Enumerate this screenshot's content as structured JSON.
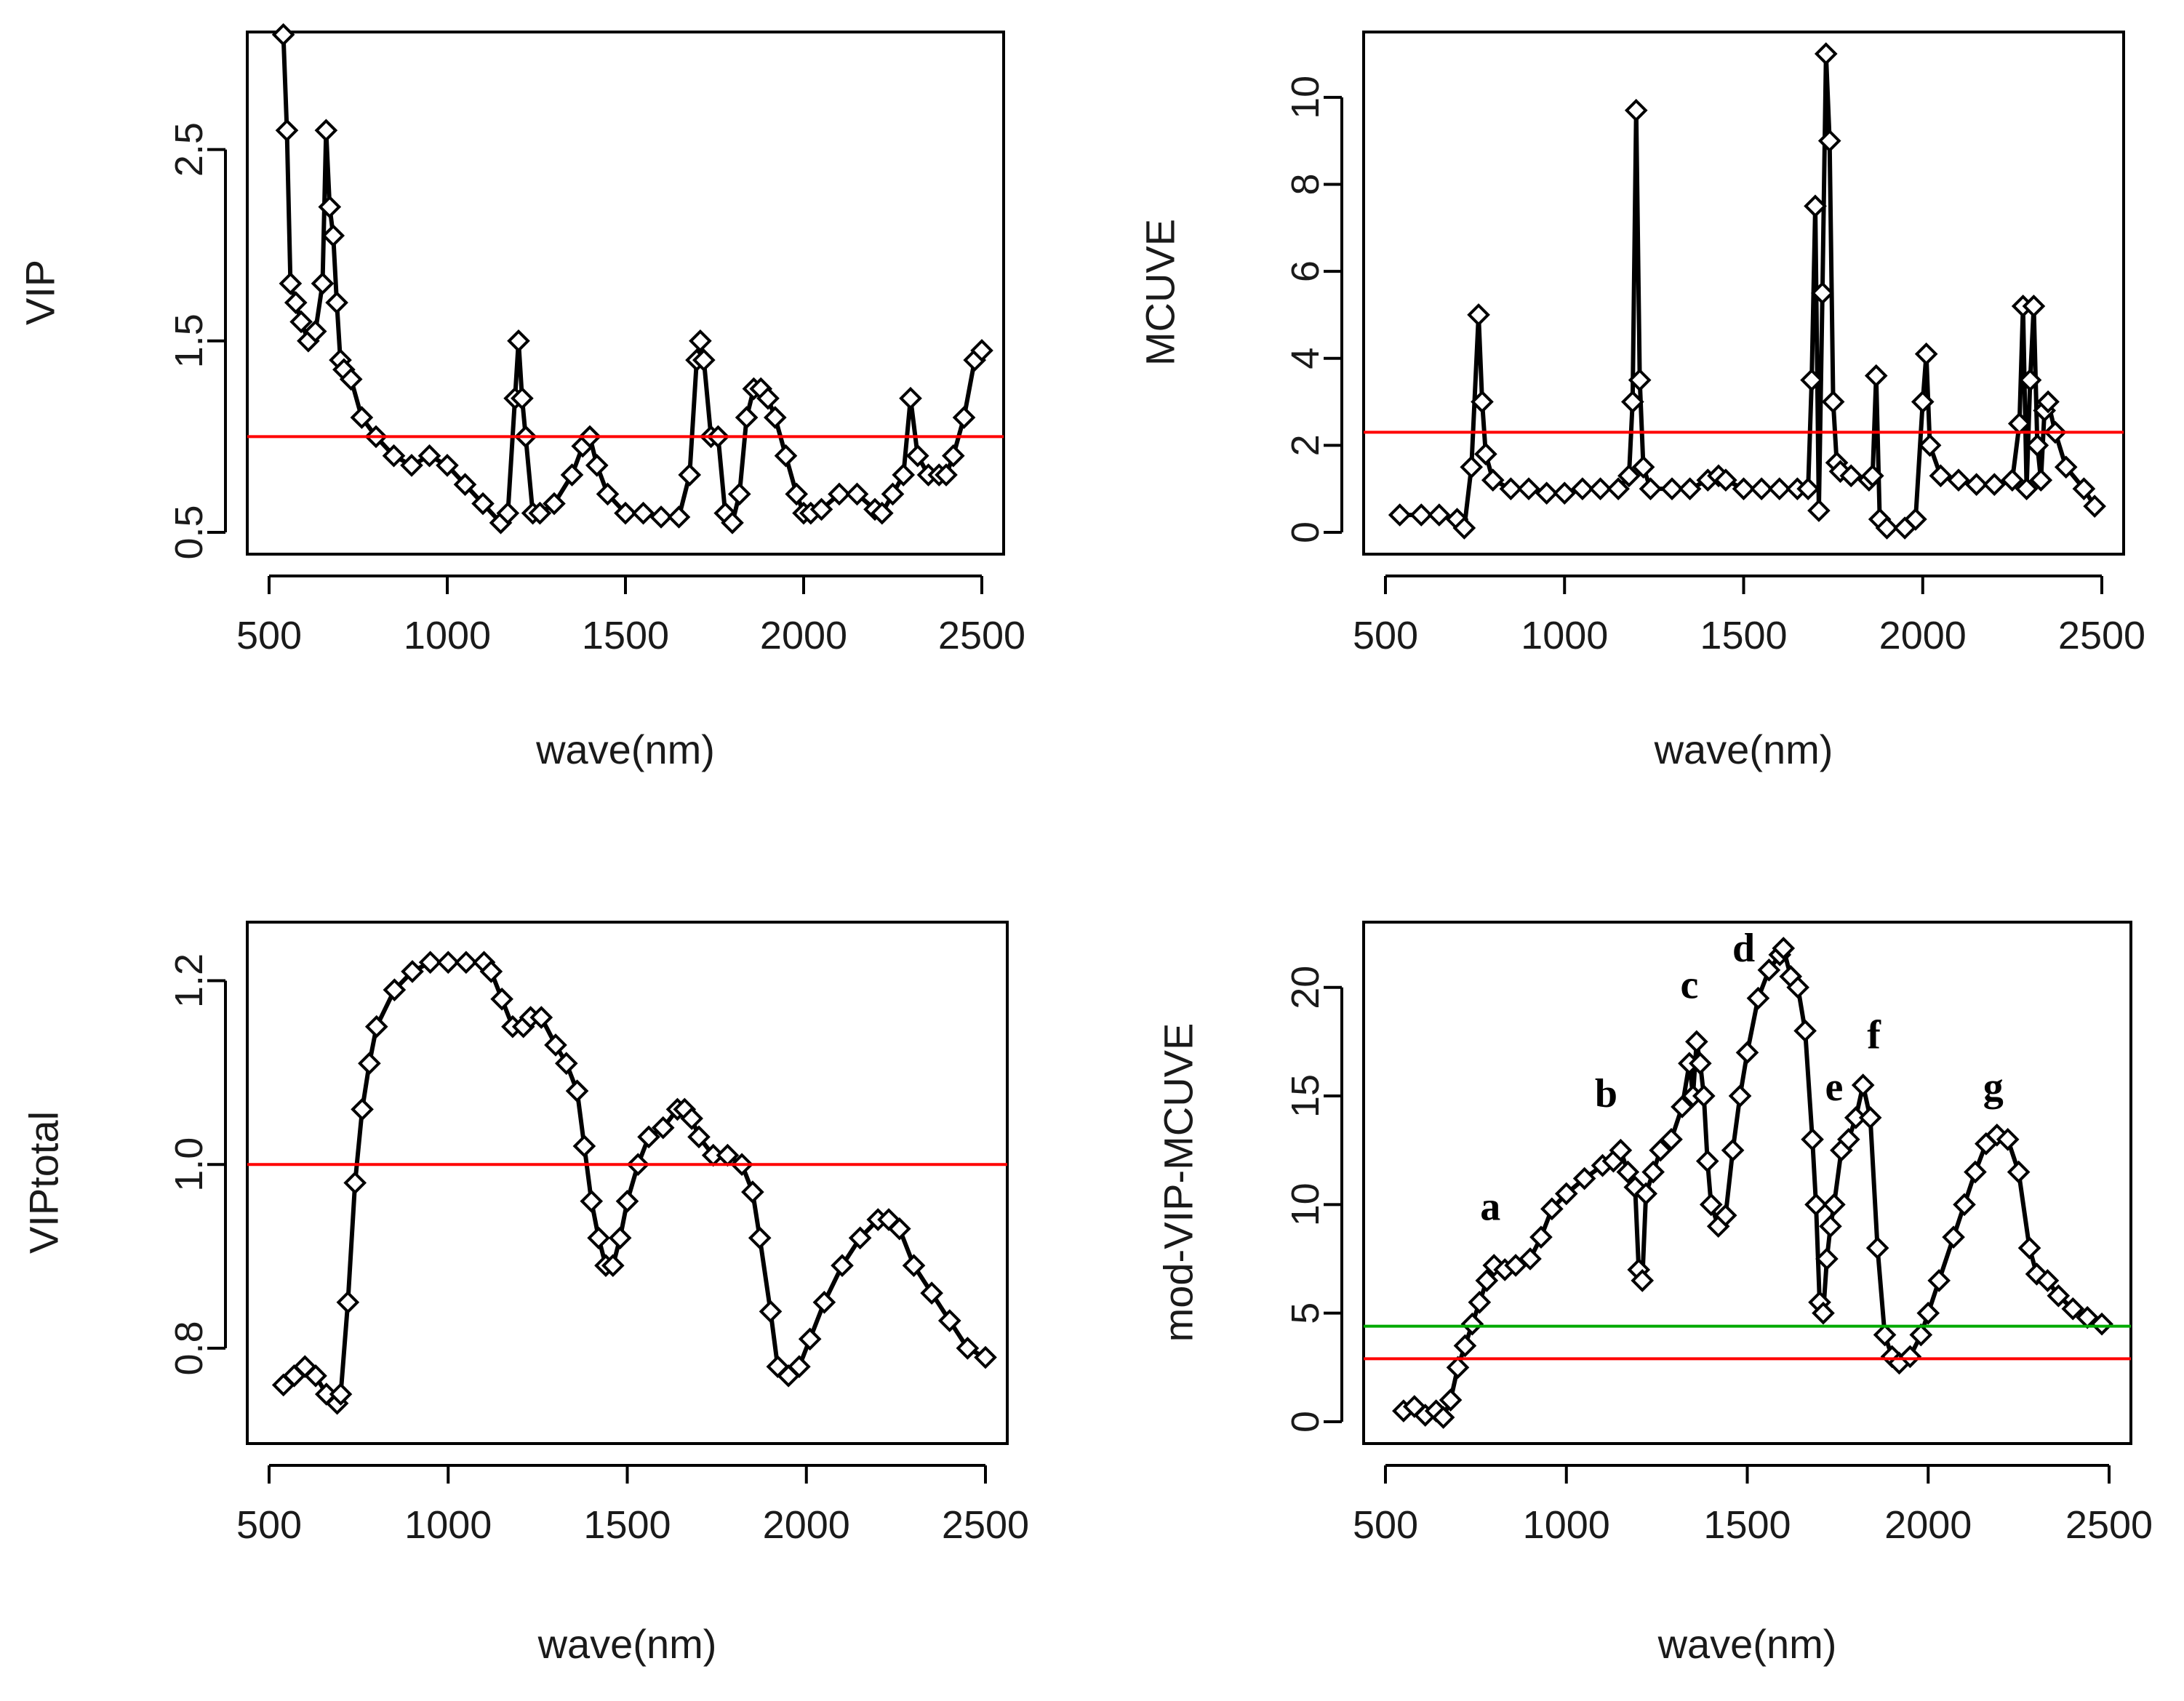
{
  "chart_data": [
    {
      "type": "scatter",
      "ylabel": "VIP",
      "xlabel": "wave(nm)",
      "xlim": [
        500,
        2500
      ],
      "ylim": [
        0.5,
        3.0
      ],
      "xticks": [
        "500",
        "1000",
        "1500",
        "2000",
        "2500"
      ],
      "xtick_values": [
        500,
        1000,
        1500,
        2000,
        2500
      ],
      "yticks": [
        "0.5",
        "1.5",
        "2.5"
      ],
      "ytick_values": [
        0.5,
        1.5,
        2.5
      ],
      "reference_lines": [
        {
          "y": 1.0,
          "color": "#ff0000"
        }
      ],
      "x": [
        540,
        550,
        560,
        575,
        590,
        610,
        630,
        650,
        660,
        670,
        680,
        690,
        700,
        710,
        730,
        760,
        800,
        850,
        900,
        950,
        1000,
        1050,
        1100,
        1150,
        1170,
        1190,
        1200,
        1210,
        1220,
        1240,
        1260,
        1300,
        1350,
        1380,
        1400,
        1420,
        1450,
        1500,
        1550,
        1600,
        1650,
        1680,
        1700,
        1710,
        1720,
        1740,
        1760,
        1780,
        1800,
        1820,
        1840,
        1860,
        1880,
        1900,
        1920,
        1950,
        1980,
        2000,
        2020,
        2050,
        2100,
        2150,
        2200,
        2220,
        2250,
        2280,
        2300,
        2320,
        2350,
        2380,
        2400,
        2420,
        2450,
        2480,
        2500
      ],
      "values": [
        3.1,
        2.6,
        1.8,
        1.7,
        1.6,
        1.5,
        1.55,
        1.8,
        2.6,
        2.2,
        2.05,
        1.7,
        1.4,
        1.35,
        1.3,
        1.1,
        1.0,
        0.9,
        0.85,
        0.9,
        0.85,
        0.75,
        0.65,
        0.55,
        0.6,
        1.2,
        1.5,
        1.2,
        1.0,
        0.6,
        0.6,
        0.65,
        0.8,
        0.95,
        1.0,
        0.85,
        0.7,
        0.6,
        0.6,
        0.58,
        0.58,
        0.8,
        1.4,
        1.5,
        1.4,
        1.0,
        1.0,
        0.6,
        0.55,
        0.7,
        1.1,
        1.25,
        1.25,
        1.2,
        1.1,
        0.9,
        0.7,
        0.6,
        0.6,
        0.62,
        0.7,
        0.7,
        0.62,
        0.6,
        0.7,
        0.8,
        1.2,
        0.9,
        0.8,
        0.8,
        0.8,
        0.9,
        1.1,
        1.4,
        1.45
      ]
    },
    {
      "type": "scatter",
      "ylabel": "MCUVE",
      "xlabel": "wave(nm)",
      "xlim": [
        500,
        2500
      ],
      "ylim": [
        0,
        11
      ],
      "xticks": [
        "500",
        "1000",
        "1500",
        "2000",
        "2500"
      ],
      "xtick_values": [
        500,
        1000,
        1500,
        2000,
        2500
      ],
      "yticks": [
        "0",
        "2",
        "4",
        "6",
        "8",
        "10"
      ],
      "ytick_values": [
        0,
        2,
        4,
        6,
        8,
        10
      ],
      "reference_lines": [
        {
          "y": 2.3,
          "color": "#ff0000"
        }
      ],
      "x": [
        540,
        600,
        650,
        700,
        720,
        740,
        760,
        770,
        780,
        800,
        850,
        900,
        950,
        1000,
        1050,
        1100,
        1150,
        1180,
        1190,
        1200,
        1210,
        1220,
        1240,
        1300,
        1350,
        1400,
        1430,
        1450,
        1500,
        1550,
        1600,
        1650,
        1680,
        1690,
        1700,
        1710,
        1720,
        1730,
        1740,
        1750,
        1760,
        1770,
        1800,
        1850,
        1860,
        1870,
        1880,
        1900,
        1950,
        1980,
        2000,
        2010,
        2020,
        2050,
        2100,
        2150,
        2200,
        2250,
        2270,
        2280,
        2290,
        2300,
        2310,
        2320,
        2330,
        2340,
        2350,
        2370,
        2400,
        2450,
        2480
      ],
      "values": [
        0.4,
        0.4,
        0.4,
        0.3,
        0.1,
        1.5,
        5.0,
        3.0,
        1.8,
        1.2,
        1.0,
        1.0,
        0.9,
        0.9,
        1.0,
        1.0,
        1.0,
        1.3,
        3.0,
        9.7,
        3.5,
        1.5,
        1.0,
        1.0,
        1.0,
        1.2,
        1.3,
        1.2,
        1.0,
        1.0,
        1.0,
        1.0,
        1.0,
        3.5,
        7.5,
        0.5,
        5.5,
        11.0,
        9.0,
        3.0,
        1.6,
        1.4,
        1.3,
        1.2,
        1.3,
        3.6,
        0.3,
        0.1,
        0.1,
        0.3,
        3.0,
        4.1,
        2.0,
        1.3,
        1.2,
        1.1,
        1.1,
        1.2,
        2.5,
        5.2,
        1.0,
        3.5,
        5.2,
        2.0,
        1.2,
        2.8,
        3.0,
        2.3,
        1.5,
        1.0,
        0.6
      ]
    },
    {
      "type": "scatter",
      "ylabel": "VIPtotal",
      "xlabel": "wave(nm)",
      "xlim": [
        500,
        2500
      ],
      "ylim": [
        0.72,
        1.24
      ],
      "xticks": [
        "500",
        "1000",
        "1500",
        "2000",
        "2500"
      ],
      "xtick_values": [
        500,
        1000,
        1500,
        2000,
        2500
      ],
      "yticks": [
        "0.8",
        "1.0",
        "1.2"
      ],
      "ytick_values": [
        0.8,
        1.0,
        1.2
      ],
      "reference_lines": [
        {
          "y": 1.0,
          "color": "#ff0000"
        }
      ],
      "x": [
        540,
        570,
        600,
        630,
        660,
        690,
        700,
        720,
        740,
        760,
        780,
        800,
        850,
        900,
        950,
        1000,
        1050,
        1100,
        1120,
        1150,
        1180,
        1210,
        1230,
        1260,
        1300,
        1330,
        1360,
        1380,
        1400,
        1420,
        1440,
        1460,
        1480,
        1500,
        1530,
        1560,
        1600,
        1640,
        1660,
        1680,
        1700,
        1740,
        1780,
        1820,
        1850,
        1870,
        1900,
        1920,
        1950,
        1980,
        2010,
        2050,
        2100,
        2150,
        2200,
        2230,
        2260,
        2300,
        2350,
        2400,
        2450,
        2500
      ],
      "values": [
        0.76,
        0.77,
        0.78,
        0.77,
        0.75,
        0.74,
        0.75,
        0.85,
        0.98,
        1.06,
        1.11,
        1.15,
        1.19,
        1.21,
        1.22,
        1.22,
        1.22,
        1.22,
        1.21,
        1.18,
        1.15,
        1.15,
        1.16,
        1.16,
        1.13,
        1.11,
        1.08,
        1.02,
        0.96,
        0.92,
        0.89,
        0.89,
        0.92,
        0.96,
        1.0,
        1.03,
        1.04,
        1.06,
        1.06,
        1.05,
        1.03,
        1.01,
        1.01,
        1.0,
        0.97,
        0.92,
        0.84,
        0.78,
        0.77,
        0.78,
        0.81,
        0.85,
        0.89,
        0.92,
        0.94,
        0.94,
        0.93,
        0.89,
        0.86,
        0.83,
        0.8,
        0.79
      ]
    },
    {
      "type": "scatter",
      "ylabel": "mod-VIP-MCUVE",
      "xlabel": "wave(nm)",
      "xlim": [
        500,
        2500
      ],
      "ylim": [
        0,
        22
      ],
      "xticks": [
        "500",
        "1000",
        "1500",
        "2000",
        "2500"
      ],
      "xtick_values": [
        500,
        1000,
        1500,
        2000,
        2500
      ],
      "yticks": [
        "0",
        "5",
        "10",
        "15",
        "20"
      ],
      "ytick_values": [
        0,
        5,
        10,
        15,
        20
      ],
      "reference_lines": [
        {
          "y": 4.4,
          "color": "#00aa00"
        },
        {
          "y": 2.9,
          "color": "#ff0000"
        }
      ],
      "annotations": [
        {
          "text": "a",
          "x": 790,
          "y": 9.3
        },
        {
          "text": "b",
          "x": 1110,
          "y": 14.5
        },
        {
          "text": "c",
          "x": 1340,
          "y": 19.5
        },
        {
          "text": "d",
          "x": 1490,
          "y": 21.2
        },
        {
          "text": "e",
          "x": 1740,
          "y": 14.8
        },
        {
          "text": "f",
          "x": 1850,
          "y": 17.2
        },
        {
          "text": "g",
          "x": 2180,
          "y": 14.8
        }
      ],
      "x": [
        550,
        580,
        610,
        640,
        660,
        680,
        700,
        720,
        740,
        760,
        780,
        800,
        830,
        860,
        900,
        930,
        960,
        1000,
        1050,
        1100,
        1130,
        1150,
        1170,
        1190,
        1200,
        1210,
        1220,
        1240,
        1260,
        1290,
        1320,
        1340,
        1350,
        1360,
        1370,
        1380,
        1390,
        1400,
        1420,
        1440,
        1460,
        1480,
        1500,
        1530,
        1560,
        1590,
        1600,
        1620,
        1640,
        1660,
        1680,
        1690,
        1700,
        1710,
        1720,
        1730,
        1740,
        1760,
        1780,
        1800,
        1820,
        1840,
        1860,
        1880,
        1900,
        1920,
        1950,
        1980,
        2000,
        2030,
        2070,
        2100,
        2130,
        2160,
        2190,
        2220,
        2250,
        2280,
        2300,
        2330,
        2360,
        2400,
        2440,
        2480
      ],
      "values": [
        0.5,
        0.7,
        0.3,
        0.5,
        0.2,
        1.0,
        2.5,
        3.5,
        4.5,
        5.5,
        6.5,
        7.2,
        7.0,
        7.2,
        7.5,
        8.5,
        9.8,
        10.5,
        11.2,
        11.8,
        12.0,
        12.5,
        11.5,
        10.8,
        7.0,
        6.5,
        10.5,
        11.5,
        12.5,
        13.0,
        14.5,
        16.5,
        15.0,
        17.5,
        16.5,
        15.0,
        12.0,
        10.0,
        9.0,
        9.5,
        12.5,
        15.0,
        17.0,
        19.5,
        20.8,
        21.5,
        21.8,
        20.5,
        20.0,
        18.0,
        13.0,
        10.0,
        5.5,
        5.0,
        7.5,
        9.0,
        10.0,
        12.5,
        13.0,
        14.0,
        15.5,
        14.0,
        8.0,
        4.0,
        3.0,
        2.7,
        3.0,
        4.0,
        5.0,
        6.5,
        8.5,
        10.0,
        11.5,
        12.8,
        13.2,
        13.0,
        11.5,
        8.0,
        6.8,
        6.5,
        5.8,
        5.2,
        4.8,
        4.5
      ]
    }
  ]
}
